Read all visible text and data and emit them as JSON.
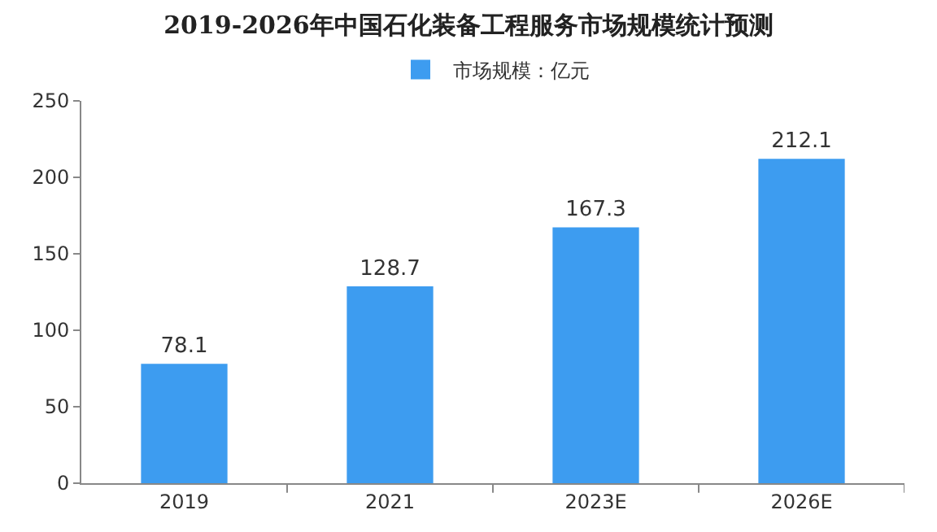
{
  "chart_data": {
    "type": "bar",
    "title": "2019-2026年中国石化装备工程服务市场规模统计预测",
    "categories": [
      "2019",
      "2021",
      "2023E",
      "2026E"
    ],
    "series": [
      {
        "name": "市场规模：亿元",
        "color": "#3d9cf0",
        "values": [
          78.1,
          128.7,
          167.3,
          212.1
        ]
      }
    ],
    "ylim": [
      0,
      250
    ],
    "yticks": [
      0,
      50,
      100,
      150,
      200,
      250
    ],
    "grid": false,
    "legend": "top",
    "data_labels": true
  }
}
